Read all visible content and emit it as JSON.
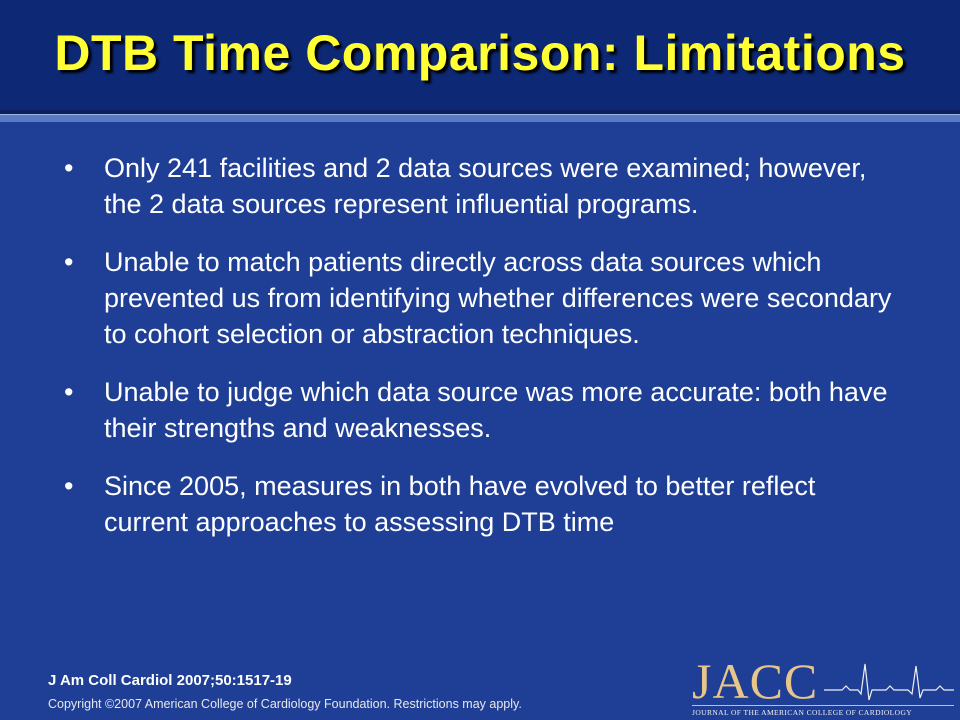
{
  "slide": {
    "title": "DTB Time Comparison: Limitations",
    "bullets": [
      {
        "marker": "•",
        "text": "Only 241 facilities and 2 data sources were examined; however, the 2 data sources represent influential programs."
      },
      {
        "marker": "•",
        "text": "Unable to match patients directly across data sources which prevented us from identifying whether differences were secondary to cohort selection or abstraction techniques."
      },
      {
        "marker": "•",
        "text": "Unable to judge which data source was more accurate: both have their strengths and weaknesses."
      },
      {
        "marker": "•",
        "text": "Since 2005, measures in both have evolved to better reflect current approaches to assessing DTB time"
      }
    ],
    "citation": "J Am Coll Cardiol 2007;50:1517-19",
    "copyright": "Copyright ©2007 American College of Cardiology Foundation. Restrictions may apply.",
    "logo": {
      "wordmark": "JACC",
      "subtitle": "JOURNAL OF THE AMERICAN COLLEGE OF CARDIOLOGY",
      "icon": "ecg-trace-icon"
    }
  },
  "colors": {
    "background": "#1f3f96",
    "title_bar": "#0d2874",
    "title_text": "#ffff33",
    "body_text": "#ffffff",
    "logo_gold": "#e8c58a"
  }
}
